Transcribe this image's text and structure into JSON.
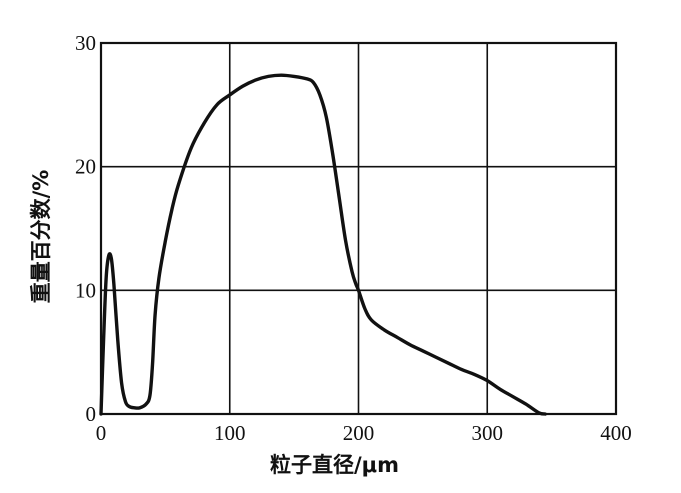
{
  "chart_data": {
    "type": "line",
    "title": "",
    "xlabel": "粒子直径/μm",
    "ylabel": "重量百分数/%",
    "xlim": [
      0,
      400
    ],
    "ylim": [
      0,
      30
    ],
    "xticks": [
      0,
      100,
      200,
      300,
      400
    ],
    "yticks": [
      0,
      10,
      20,
      30
    ],
    "xtick_labels": [
      "0",
      "100",
      "200",
      "300",
      "400"
    ],
    "ytick_labels": [
      "0",
      "10",
      "20",
      "30"
    ],
    "grid": true,
    "legend": "none",
    "series": [
      {
        "x": [
          0,
          2,
          4,
          6,
          8,
          10,
          13,
          16,
          19,
          22,
          26,
          30,
          35,
          38,
          40,
          42,
          45,
          50,
          55,
          60,
          70,
          80,
          90,
          100,
          110,
          120,
          130,
          140,
          150,
          160,
          165,
          170,
          175,
          180,
          185,
          190,
          195,
          198,
          200,
          205,
          210,
          220,
          230,
          240,
          250,
          260,
          270,
          280,
          290,
          300,
          310,
          320,
          330,
          340,
          345
        ],
        "y": [
          0,
          6,
          11,
          12.8,
          12.6,
          10.5,
          6,
          2.5,
          1,
          0.6,
          0.5,
          0.5,
          0.8,
          1.5,
          4,
          8,
          11,
          14,
          16.5,
          18.5,
          21.5,
          23.5,
          25,
          25.8,
          26.5,
          27,
          27.3,
          27.4,
          27.3,
          27.1,
          26.8,
          25.8,
          24,
          21,
          17.5,
          14,
          11.5,
          10.5,
          10,
          8.5,
          7.6,
          6.8,
          6.2,
          5.6,
          5.1,
          4.6,
          4.1,
          3.6,
          3.2,
          2.7,
          2,
          1.4,
          0.8,
          0.1,
          0
        ]
      }
    ]
  }
}
